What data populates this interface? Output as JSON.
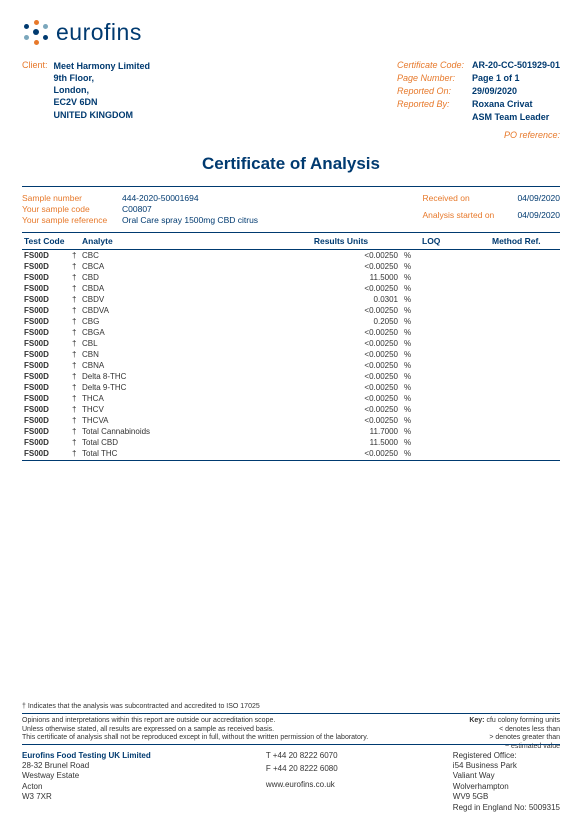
{
  "logo_text": "eurofins",
  "client": {
    "label": "Client:",
    "name": "Meet Harmony Limited",
    "addr1": "9th Floor,",
    "addr2": "London,",
    "addr3": "EC2V 6DN",
    "addr4": "UNITED KINGDOM"
  },
  "cert_info": {
    "code_label": "Certificate Code:",
    "code": "AR-20-CC-501929-01",
    "page_label": "Page Number:",
    "page": "Page 1 of 1",
    "reported_on_label": "Reported On:",
    "reported_on": "29/09/2020",
    "reported_by_label": "Reported By:",
    "reported_by": "Roxana Crivat",
    "reported_by2": "ASM Team Leader",
    "po_label": "PO reference:"
  },
  "title": "Certificate of Analysis",
  "sample": {
    "num_label": "Sample number",
    "num": "444-2020-50001694",
    "code_label": "Your sample code",
    "code": "C00807",
    "ref_label": "Your sample reference",
    "ref": "Oral Care spray 1500mg CBD citrus",
    "recv_label": "Received on",
    "recv": "04/09/2020",
    "start_label": "Analysis started on",
    "start": "04/09/2020"
  },
  "table": {
    "headers": {
      "test_code": "Test Code",
      "analyte": "Analyte",
      "results_units": "Results Units",
      "loq": "LOQ",
      "method": "Method Ref."
    },
    "rows": [
      {
        "tc": "FS00D",
        "d": "†",
        "a": "CBC",
        "r": "<0.00250",
        "u": "%"
      },
      {
        "tc": "FS00D",
        "d": "†",
        "a": "CBCA",
        "r": "<0.00250",
        "u": "%"
      },
      {
        "tc": "FS00D",
        "d": "†",
        "a": "CBD",
        "r": "11.5000",
        "u": "%"
      },
      {
        "tc": "FS00D",
        "d": "†",
        "a": "CBDA",
        "r": "<0.00250",
        "u": "%"
      },
      {
        "tc": "FS00D",
        "d": "†",
        "a": "CBDV",
        "r": "0.0301",
        "u": "%"
      },
      {
        "tc": "FS00D",
        "d": "†",
        "a": "CBDVA",
        "r": "<0.00250",
        "u": "%"
      },
      {
        "tc": "FS00D",
        "d": "†",
        "a": "CBG",
        "r": "0.2050",
        "u": "%"
      },
      {
        "tc": "FS00D",
        "d": "†",
        "a": "CBGA",
        "r": "<0.00250",
        "u": "%"
      },
      {
        "tc": "FS00D",
        "d": "†",
        "a": "CBL",
        "r": "<0.00250",
        "u": "%"
      },
      {
        "tc": "FS00D",
        "d": "†",
        "a": "CBN",
        "r": "<0.00250",
        "u": "%"
      },
      {
        "tc": "FS00D",
        "d": "†",
        "a": "CBNA",
        "r": "<0.00250",
        "u": "%"
      },
      {
        "tc": "FS00D",
        "d": "†",
        "a": "Delta 8-THC",
        "r": "<0.00250",
        "u": "%"
      },
      {
        "tc": "FS00D",
        "d": "†",
        "a": "Delta 9-THC",
        "r": "<0.00250",
        "u": "%"
      },
      {
        "tc": "FS00D",
        "d": "†",
        "a": "THCA",
        "r": "<0.00250",
        "u": "%"
      },
      {
        "tc": "FS00D",
        "d": "†",
        "a": "THCV",
        "r": "<0.00250",
        "u": "%"
      },
      {
        "tc": "FS00D",
        "d": "†",
        "a": "THCVA",
        "r": "<0.00250",
        "u": "%"
      },
      {
        "tc": "FS00D",
        "d": "†",
        "a": "Total Cannabinoids",
        "r": "11.7000",
        "u": "%"
      },
      {
        "tc": "FS00D",
        "d": "†",
        "a": "Total CBD",
        "r": "11.5000",
        "u": "%"
      },
      {
        "tc": "FS00D",
        "d": "†",
        "a": "Total THC",
        "r": "<0.00250",
        "u": "%"
      }
    ]
  },
  "footnotes": {
    "dagger": "†   Indicates that the analysis was subcontracted and accredited to ISO 17025",
    "line1": "Opinions and interpretations within this report are outside our accreditation scope.",
    "line2": "Unless otherwise stated, all results are expressed on a sample as received basis.",
    "line3": "This certificate of analysis shall not be reproduced except in full, without the written permission of the laboratory.",
    "key_title": "Key:",
    "key1": "cfu colony forming units",
    "key2": "< denotes less than",
    "key3": "> denotes greater than",
    "key4": "~ estimated value"
  },
  "footer": {
    "company": "Eurofins Food Testing UK Limited",
    "addr1": "28-32 Brunel Road",
    "addr2": "Westway Estate",
    "addr3": "Acton",
    "addr4": "W3 7XR",
    "tel": "T +44 20 8222 6070",
    "fax": "F +44 20 8222 6080",
    "web": "www.eurofins.co.uk",
    "reg_label": "Registered Office:",
    "reg1": "i54 Business Park",
    "reg2": "Valiant Way",
    "reg3": "Wolverhampton",
    "reg4": "WV9 5GB",
    "reg5": "Regd in England No: 5009315"
  }
}
